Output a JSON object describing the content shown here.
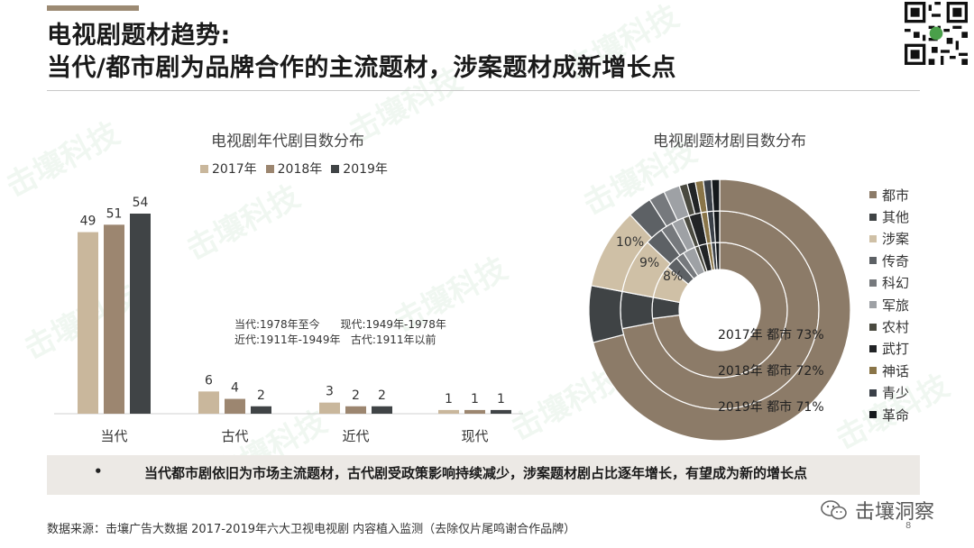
{
  "header": {
    "title_line1": "电视剧题材趋势:",
    "title_line2": "当代/都市剧为品牌合作的主流题材，涉案题材成新增长点"
  },
  "bar_chart": {
    "title": "电视剧年代剧目数分布",
    "note_line1": "当代:1978年至今      现代:1949年-1978年",
    "note_line2": "近代:1911年-1949年   古代:1911年以前"
  },
  "pie_chart": {
    "title": "电视剧题材剧目数分布",
    "ring_labels": [
      "2017年 都市 73%",
      "2018年 都市 72%",
      "2019年 都市 71%"
    ],
    "slice_labels": [
      "10%",
      "9%",
      "8%"
    ]
  },
  "chart_data": [
    {
      "type": "bar",
      "title": "电视剧年代剧目数分布",
      "categories": [
        "当代",
        "古代",
        "近代",
        "现代"
      ],
      "series": [
        {
          "name": "2017年",
          "values": [
            49,
            6,
            3,
            1
          ],
          "color": "#c9b79c"
        },
        {
          "name": "2018年",
          "values": [
            51,
            4,
            2,
            1
          ],
          "color": "#9c8670"
        },
        {
          "name": "2019年",
          "values": [
            54,
            2,
            2,
            1
          ],
          "color": "#404446"
        }
      ],
      "ylim": [
        0,
        60
      ],
      "legend": "top",
      "grid": false
    },
    {
      "type": "pie",
      "title": "电视剧题材剧目数分布",
      "donut": true,
      "rings": [
        "2017年",
        "2018年",
        "2019年"
      ],
      "categories": [
        "都市",
        "其他",
        "涉案",
        "传奇",
        "科幻",
        "军旅",
        "农村",
        "武打",
        "神话",
        "青少",
        "革命"
      ],
      "colors": [
        "#8c7b68",
        "#3f4345",
        "#cfc0a6",
        "#5d6165",
        "#76797d",
        "#9ea1a5",
        "#4a4a40",
        "#222426",
        "#8a7548",
        "#3a4048",
        "#15191c"
      ],
      "series": [
        {
          "name": "2017年",
          "values": [
            73,
            5,
            8,
            3,
            2,
            3,
            1,
            2,
            1,
            1,
            1
          ]
        },
        {
          "name": "2018年",
          "values": [
            72,
            6,
            9,
            3,
            2,
            2,
            1,
            2,
            1,
            1,
            1
          ]
        },
        {
          "name": "2019年",
          "values": [
            71,
            7,
            10,
            3,
            2,
            2,
            1,
            1,
            1,
            1,
            1
          ]
        }
      ],
      "legend": "right"
    }
  ],
  "summary": {
    "bullet": "•",
    "text": "当代都市剧依旧为市场主流题材，古代剧受政策影响持续减少，涉案题材剧占比逐年增长，有望成为新的增长点"
  },
  "footer": {
    "source": "数据来源：击壤广告大数据  2017-2019年六大卫视电视剧 内容植入监测（去除仅片尾鸣谢合作品牌）",
    "page": "8",
    "brand": "击壤洞察"
  }
}
